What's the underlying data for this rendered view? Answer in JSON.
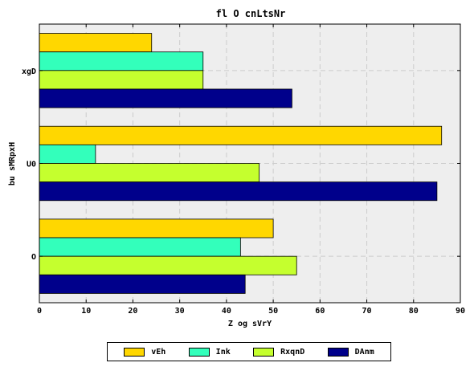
{
  "chart_data": {
    "type": "bar",
    "orientation": "horizontal",
    "title": "fl O cnLtsNr",
    "xlabel": "Z og sVrY",
    "ylabel": "bu sMRpxH",
    "categories": [
      "O",
      "U0",
      "xgD"
    ],
    "xlim": [
      0,
      90
    ],
    "xticks": [
      "0",
      "10",
      "20",
      "30",
      "40",
      "50",
      "60",
      "70",
      "80",
      "90"
    ],
    "grid": true,
    "legend_position": "bottom-center",
    "series": [
      {
        "name": "vEh",
        "color": "#ffd700",
        "values": [
          50,
          86,
          24
        ]
      },
      {
        "name": "Ink",
        "color": "#33ffbb",
        "values": [
          43,
          12,
          35
        ]
      },
      {
        "name": "RxqnD",
        "color": "#c5ff2e",
        "values": [
          55,
          47,
          35
        ]
      },
      {
        "name": "DAnm",
        "color": "#00008b",
        "values": [
          44,
          85,
          54
        ]
      }
    ]
  }
}
